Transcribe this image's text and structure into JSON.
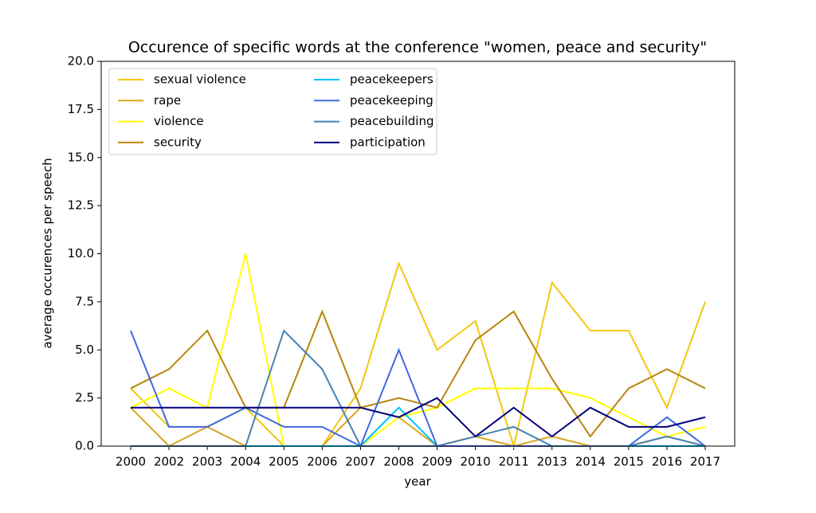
{
  "chart_data": {
    "type": "line",
    "title": "Occurence of specific words at the conference \"women, peace and security\"",
    "x_label": "year",
    "y_label": "average occurences per speech",
    "categories": [
      "2000",
      "2002",
      "2003",
      "2004",
      "2005",
      "2006",
      "2007",
      "2008",
      "2009",
      "2010",
      "2011",
      "2013",
      "2014",
      "2015",
      "2016",
      "2017"
    ],
    "ylim": [
      0,
      20
    ],
    "yticks": [
      {
        "value": 0,
        "label": "0.0"
      },
      {
        "value": 2.5,
        "label": "2.5"
      },
      {
        "value": 5,
        "label": "5.0"
      },
      {
        "value": 7.5,
        "label": "7.5"
      },
      {
        "value": 10,
        "label": "10.0"
      },
      {
        "value": 12.5,
        "label": "12.5"
      },
      {
        "value": 15,
        "label": "15.0"
      },
      {
        "value": 17.5,
        "label": "17.5"
      },
      {
        "value": 20,
        "label": "20.0"
      }
    ],
    "legend": "upper left",
    "legend_columns": 2,
    "series": [
      {
        "name": "sexual violence",
        "color": "#f2c811",
        "values": [
          3,
          1,
          1,
          2,
          0,
          0,
          3,
          9.5,
          5,
          6.5,
          0,
          8.5,
          6,
          6,
          2,
          7.5
        ]
      },
      {
        "name": "rape",
        "color": "#daa520",
        "values": [
          2,
          0,
          1,
          0,
          0,
          0,
          2,
          1.5,
          0,
          0.5,
          0,
          0.5,
          0,
          0,
          0.5,
          0
        ]
      },
      {
        "name": "violence",
        "color": "#ffff00",
        "values": [
          2,
          3,
          2,
          10,
          0,
          0,
          0,
          1.5,
          2,
          3,
          3,
          3,
          2.5,
          1.5,
          0.5,
          1
        ]
      },
      {
        "name": "security",
        "color": "#b8860b",
        "values": [
          3,
          4,
          6,
          2,
          2,
          7,
          2,
          2.5,
          2,
          5.5,
          7,
          3.5,
          0.5,
          3,
          4,
          3
        ]
      },
      {
        "name": "peacekeepers",
        "color": "#00bfff",
        "values": [
          0,
          0,
          0,
          0,
          0,
          0,
          0,
          2,
          0,
          0,
          0,
          0,
          0,
          0,
          0,
          0
        ]
      },
      {
        "name": "peacekeeping",
        "color": "#4169e1",
        "values": [
          6,
          1,
          1,
          2,
          1,
          1,
          0,
          5,
          0,
          0,
          0,
          0,
          0,
          0,
          1.5,
          0
        ]
      },
      {
        "name": "peacebuilding",
        "color": "#4682b4",
        "values": [
          0,
          0,
          0,
          0,
          6,
          4,
          0,
          0,
          0,
          0.5,
          1,
          0,
          0,
          0,
          0.5,
          0
        ]
      },
      {
        "name": "participation",
        "color": "#000080",
        "values": [
          2,
          2,
          2,
          2,
          2,
          2,
          2,
          1.5,
          2.5,
          0.5,
          2,
          0.5,
          2,
          1,
          1,
          1.5
        ]
      }
    ]
  }
}
